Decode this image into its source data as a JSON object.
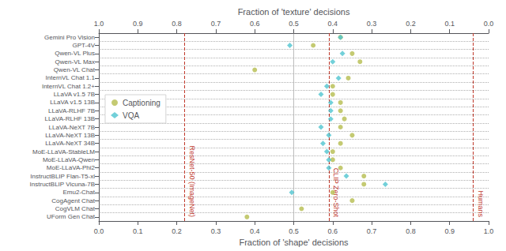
{
  "chart_data": {
    "type": "scatter",
    "orientation": "horizontal",
    "xlabel": "Fraction of 'shape' decisions",
    "xlabel_top": "Fraction of 'texture' decisions",
    "categories": [
      "Gemini Pro Vision",
      "GPT-4V",
      "Qwen-VL Plus",
      "Qwen-VL Max",
      "Qwen-VL Chat",
      "InternVL Chat 1.1",
      "InternVL Chat 1.2+",
      "LLaVA v1.5 7B",
      "LLaVA v1.5 13B",
      "LLaVA-RLHF 7B",
      "LLaVA-RLHF 13B",
      "LLaVA-NeXT 7B",
      "LLaVA-NeXT 13B",
      "LLaVA-NeXT 34B",
      "MoE-LLaVA-StableLM",
      "MoE-LLaVA-Qwen",
      "MoE-LLaVA-Phi2",
      "InstructBLIP Flan-T5-xl",
      "InstructBLIP Vicuna-7B",
      "Emu2-Chat",
      "CogAgent Chat",
      "CogVLM Chat",
      "UForm Gen Chat"
    ],
    "series": [
      {
        "name": "Captioning",
        "color": "#b5bd4f",
        "marker": "circle",
        "values": [
          0.62,
          0.55,
          0.65,
          0.67,
          0.4,
          0.64,
          0.6,
          0.6,
          0.62,
          0.62,
          0.63,
          0.62,
          0.65,
          0.62,
          0.6,
          0.6,
          0.62,
          0.68,
          0.68,
          0.6,
          0.65,
          0.52,
          0.38
        ]
      },
      {
        "name": "VQA",
        "color": "#4fc4cf",
        "marker": "diamond",
        "values": [
          0.62,
          0.49,
          0.625,
          0.6,
          null,
          0.615,
          0.585,
          0.57,
          0.595,
          0.595,
          0.595,
          0.57,
          0.59,
          0.575,
          0.585,
          0.59,
          0.59,
          0.635,
          0.735,
          0.495,
          null,
          null,
          null
        ]
      }
    ],
    "xlim": [
      0,
      1
    ],
    "xticks": [
      {
        "value": 0,
        "label": "0.0"
      },
      0.1,
      0.2,
      0.3,
      0.4,
      0.5,
      0.6,
      0.7,
      0.8,
      0.9,
      {
        "value": 1,
        "label": "1.0"
      }
    ],
    "x2lim": [
      1,
      0
    ],
    "x2ticks": [
      {
        "value": 1,
        "label": "1.0"
      },
      0.9,
      0.8,
      0.7,
      0.6,
      0.5,
      0.4,
      0.3,
      0.2,
      0.1,
      {
        "value": 0,
        "label": "0.0"
      }
    ],
    "vlines": [
      {
        "x": 0.5,
        "color": "#888888",
        "line_style": "solid"
      },
      {
        "x": 0.22,
        "label": "ResNet-50 (ImageNet)",
        "color": "#c0392b",
        "line_style": "dashed"
      },
      {
        "x": 0.59,
        "label": "CLIP Zero-Shot",
        "color": "#c0392b",
        "line_style": "dashed"
      },
      {
        "x": 0.96,
        "label": "Humans",
        "color": "#c0392b",
        "line_style": "dashed"
      }
    ],
    "grid": "y",
    "legend": "left"
  }
}
